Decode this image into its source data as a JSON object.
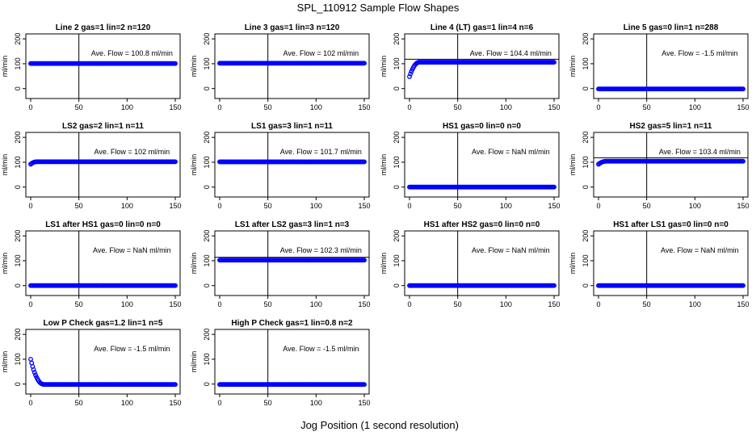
{
  "figure": {
    "title": "SPL_110912  Sample Flow Shapes",
    "xlabel": "Jog Position (1 second resolution)"
  },
  "chart_data": [
    {
      "type": "scatter",
      "title": "Line 2 gas=1 lin=2 n=120",
      "ylabel": "ml/min",
      "annotation": "Ave. Flow =  100.8  ml/min",
      "xlim": [
        0,
        150
      ],
      "ylim": [
        -40,
        220
      ],
      "xticks": [
        0,
        50,
        100,
        150
      ],
      "yticks": [
        0,
        100,
        200
      ],
      "vline_x": 50,
      "hline_y": null,
      "profile": {
        "start": 100.8,
        "plateau": 100.8,
        "rise_end": 0
      }
    },
    {
      "type": "scatter",
      "title": "Line 3 gas=1 lin=3 n=120",
      "ylabel": "ml/min",
      "annotation": "Ave. Flow =  102  ml/min",
      "xlim": [
        0,
        150
      ],
      "ylim": [
        -40,
        220
      ],
      "xticks": [
        0,
        50,
        100,
        150
      ],
      "yticks": [
        0,
        100,
        200
      ],
      "vline_x": 50,
      "hline_y": null,
      "profile": {
        "start": 102,
        "plateau": 102,
        "rise_end": 0
      }
    },
    {
      "type": "scatter",
      "title": "Line 4 (LT) gas=1 lin=4 n=6",
      "ylabel": "ml/min",
      "annotation": "Ave. Flow =  104.4  ml/min",
      "xlim": [
        0,
        150
      ],
      "ylim": [
        -40,
        220
      ],
      "xticks": [
        0,
        50,
        100,
        150
      ],
      "yticks": [
        0,
        100,
        200
      ],
      "vline_x": 50,
      "hline_y": 118,
      "profile": {
        "start": 48,
        "plateau": 106,
        "rise_end": 10
      }
    },
    {
      "type": "scatter",
      "title": "Line 5 gas=0 lin=1 n=288",
      "ylabel": "ml/min",
      "annotation": "Ave. Flow =  -1.5  ml/min",
      "xlim": [
        0,
        150
      ],
      "ylim": [
        -40,
        220
      ],
      "xticks": [
        0,
        50,
        100,
        150
      ],
      "yticks": [
        0,
        100,
        200
      ],
      "vline_x": 50,
      "hline_y": null,
      "profile": {
        "start": -1.5,
        "plateau": -1.5,
        "rise_end": 0
      }
    },
    {
      "type": "scatter",
      "title": "LS2 gas=2 lin=1 n=11",
      "ylabel": "ml/min",
      "annotation": "Ave. Flow =  102  ml/min",
      "xlim": [
        0,
        150
      ],
      "ylim": [
        -40,
        220
      ],
      "xticks": [
        0,
        50,
        100,
        150
      ],
      "yticks": [
        0,
        100,
        200
      ],
      "vline_x": 50,
      "hline_y": null,
      "profile": {
        "start": 92,
        "plateau": 102,
        "rise_end": 6
      }
    },
    {
      "type": "scatter",
      "title": "LS1 gas=3 lin=1 n=11",
      "ylabel": "ml/min",
      "annotation": "Ave. Flow =  101.7  ml/min",
      "xlim": [
        0,
        150
      ],
      "ylim": [
        -40,
        220
      ],
      "xticks": [
        0,
        50,
        100,
        150
      ],
      "yticks": [
        0,
        100,
        200
      ],
      "vline_x": 50,
      "hline_y": null,
      "profile": {
        "start": 101.7,
        "plateau": 101.7,
        "rise_end": 0
      }
    },
    {
      "type": "scatter",
      "title": "HS1 gas=0 lin=0 n=0",
      "ylabel": "ml/min",
      "annotation": "Ave. Flow =  NaN  ml/min",
      "xlim": [
        0,
        150
      ],
      "ylim": [
        -40,
        220
      ],
      "xticks": [
        0,
        50,
        100,
        150
      ],
      "yticks": [
        0,
        100,
        200
      ],
      "vline_x": 50,
      "hline_y": null,
      "profile": {
        "start": 0,
        "plateau": 0,
        "rise_end": 0
      }
    },
    {
      "type": "scatter",
      "title": "HS2 gas=5 lin=1 n=11",
      "ylabel": "ml/min",
      "annotation": "Ave. Flow =  103.4  ml/min",
      "xlim": [
        0,
        150
      ],
      "ylim": [
        -40,
        220
      ],
      "xticks": [
        0,
        50,
        100,
        150
      ],
      "yticks": [
        0,
        100,
        200
      ],
      "vline_x": 50,
      "hline_y": 118,
      "profile": {
        "start": 92,
        "plateau": 104,
        "rise_end": 8
      }
    },
    {
      "type": "scatter",
      "title": "LS1 after HS1 gas=0 lin=0 n=0",
      "ylabel": "ml/min",
      "annotation": "Ave. Flow =  NaN  ml/min",
      "xlim": [
        0,
        150
      ],
      "ylim": [
        -40,
        220
      ],
      "xticks": [
        0,
        50,
        100,
        150
      ],
      "yticks": [
        0,
        100,
        200
      ],
      "vline_x": 50,
      "hline_y": null,
      "profile": {
        "start": 0,
        "plateau": 0,
        "rise_end": 0
      }
    },
    {
      "type": "scatter",
      "title": "LS1 after LS2 gas=3 lin=1 n=3",
      "ylabel": "ml/min",
      "annotation": "Ave. Flow =  102.3  ml/min",
      "xlim": [
        0,
        150
      ],
      "ylim": [
        -40,
        220
      ],
      "xticks": [
        0,
        50,
        100,
        150
      ],
      "yticks": [
        0,
        100,
        200
      ],
      "vline_x": 50,
      "hline_y": 114,
      "profile": {
        "start": 102.3,
        "plateau": 102.3,
        "rise_end": 0
      }
    },
    {
      "type": "scatter",
      "title": "HS1 after HS2 gas=0 lin=0 n=0",
      "ylabel": "ml/min",
      "annotation": "Ave. Flow =  NaN  ml/min",
      "xlim": [
        0,
        150
      ],
      "ylim": [
        -40,
        220
      ],
      "xticks": [
        0,
        50,
        100,
        150
      ],
      "yticks": [
        0,
        100,
        200
      ],
      "vline_x": 50,
      "hline_y": null,
      "profile": {
        "start": 0,
        "plateau": 0,
        "rise_end": 0
      }
    },
    {
      "type": "scatter",
      "title": "HS1 after LS1 gas=0 lin=0 n=0",
      "ylabel": "ml/min",
      "annotation": "Ave. Flow =  NaN  ml/min",
      "xlim": [
        0,
        150
      ],
      "ylim": [
        -40,
        220
      ],
      "xticks": [
        0,
        50,
        100,
        150
      ],
      "yticks": [
        0,
        100,
        200
      ],
      "vline_x": 50,
      "hline_y": null,
      "profile": {
        "start": 0,
        "plateau": 0,
        "rise_end": 0
      }
    },
    {
      "type": "scatter",
      "title": "Low P Check gas=1.2 lin=1 n=5",
      "ylabel": "ml/min",
      "annotation": "Ave. Flow =  -1.5  ml/min",
      "xlim": [
        0,
        150
      ],
      "ylim": [
        -40,
        220
      ],
      "xticks": [
        0,
        50,
        100,
        150
      ],
      "yticks": [
        0,
        100,
        200
      ],
      "vline_x": 50,
      "hline_y": null,
      "profile": {
        "start": 100,
        "plateau": -1.5,
        "decay_end": 14
      }
    },
    {
      "type": "scatter",
      "title": "High P Check gas=1 lin=0.8 n=2",
      "ylabel": "ml/min",
      "annotation": "Ave. Flow =  -1.5  ml/min",
      "xlim": [
        0,
        150
      ],
      "ylim": [
        -40,
        220
      ],
      "xticks": [
        0,
        50,
        100,
        150
      ],
      "yticks": [
        0,
        100,
        200
      ],
      "vline_x": 50,
      "hline_y": null,
      "profile": {
        "start": -1.5,
        "plateau": -1.5,
        "rise_end": 0
      }
    }
  ],
  "colors": {
    "points": "#0000ff",
    "axis": "#000000"
  }
}
